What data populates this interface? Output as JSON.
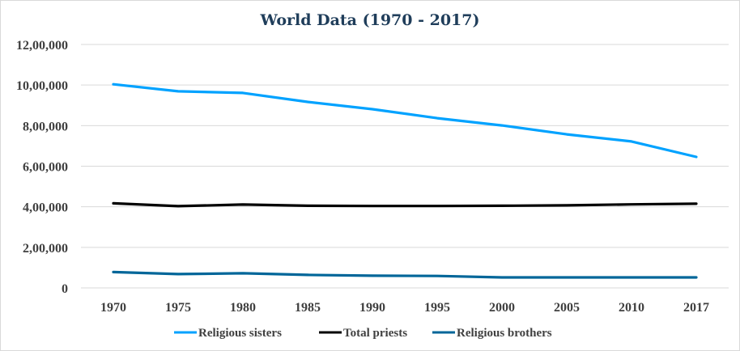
{
  "chart_data": {
    "type": "line",
    "title": "World Data (1970 - 2017)",
    "xlabel": "",
    "ylabel": "",
    "categories": [
      "1970",
      "1975",
      "1980",
      "1985",
      "1990",
      "1995",
      "2000",
      "2005",
      "2010",
      "2017"
    ],
    "ylim": [
      0,
      1200000
    ],
    "yticks": [
      0,
      200000,
      400000,
      600000,
      800000,
      1000000,
      1200000
    ],
    "ytick_labels": [
      "0",
      "2,00,000",
      "4,00,000",
      "6,00,000",
      "8,00,000",
      "10,00,000",
      "12,00,000"
    ],
    "grid": true,
    "legend_position": "bottom",
    "series": [
      {
        "name": "Religious sisters",
        "color": "#00a2ff",
        "values": [
          1004000,
          969000,
          961000,
          917000,
          881000,
          837000,
          801000,
          757000,
          722000,
          646000
        ]
      },
      {
        "name": "Total priests",
        "color": "#000000",
        "values": [
          417000,
          403000,
          411000,
          405000,
          404000,
          404000,
          405000,
          407000,
          412000,
          415000
        ]
      },
      {
        "name": "Religious brothers",
        "color": "#006699",
        "values": [
          78000,
          68000,
          72000,
          64000,
          60000,
          59000,
          52000,
          52000,
          52000,
          52000
        ]
      }
    ]
  }
}
